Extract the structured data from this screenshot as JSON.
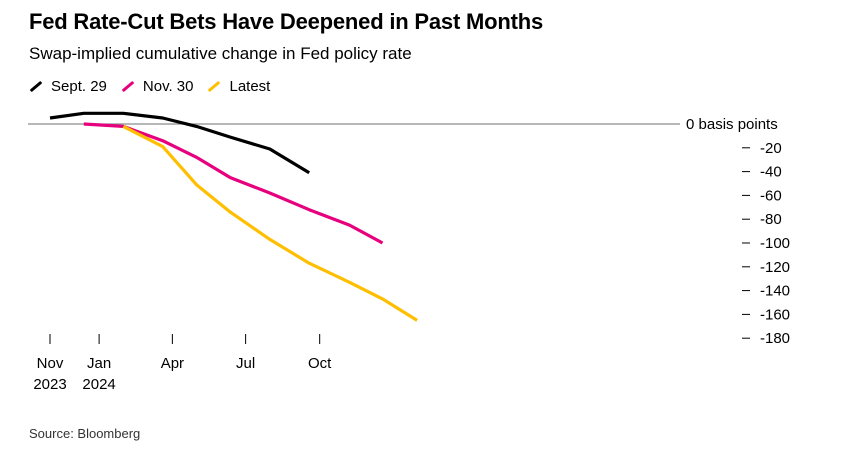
{
  "title": "Fed Rate-Cut Bets Have Deepened in Past Months",
  "subtitle": "Swap-implied cumulative change in Fed policy rate",
  "source": "Source: Bloomberg",
  "chart_data": {
    "type": "line",
    "title": "Fed Rate-Cut Bets Have Deepened in Past Months",
    "subtitle": "Swap-implied cumulative change in Fed policy rate",
    "y_unit_label": "basis points",
    "ylim": [
      -180,
      0
    ],
    "y_ticks": [
      0,
      -20,
      -40,
      -60,
      -80,
      -100,
      -120,
      -140,
      -160,
      -180
    ],
    "y_tick_labels": [
      "0 basis points",
      "-20",
      "-40",
      "-60",
      "-80",
      "-100",
      "-120",
      "-140",
      "-160",
      "-180"
    ],
    "x_ticks": [
      {
        "date": "2023-11-01",
        "label": "Nov",
        "sublabel": "2023"
      },
      {
        "date": "2024-01-01",
        "label": "Jan",
        "sublabel": "2024"
      },
      {
        "date": "2024-04-01",
        "label": "Apr",
        "sublabel": ""
      },
      {
        "date": "2024-07-01",
        "label": "Jul",
        "sublabel": ""
      },
      {
        "date": "2024-10-01",
        "label": "Oct",
        "sublabel": ""
      }
    ],
    "xlim": [
      "2023-11-01",
      "2025-01-10"
    ],
    "legend_position": "top-left",
    "grid": false,
    "series": [
      {
        "name": "Sept. 29",
        "color": "#000000",
        "x": [
          "2023-11-01",
          "2023-12-13",
          "2024-01-31",
          "2024-03-20",
          "2024-05-01",
          "2024-06-12",
          "2024-07-31",
          "2024-09-18"
        ],
        "y": [
          5,
          9,
          9,
          5,
          -2,
          -11,
          -21,
          -41
        ]
      },
      {
        "name": "Nov. 30",
        "color": "#e6007e",
        "x": [
          "2023-12-13",
          "2024-01-31",
          "2024-03-20",
          "2024-05-01",
          "2024-06-12",
          "2024-07-31",
          "2024-09-18",
          "2024-11-07",
          "2024-12-18"
        ],
        "y": [
          0,
          -2,
          -14,
          -28,
          -45,
          -58,
          -72,
          -85,
          -100
        ]
      },
      {
        "name": "Latest",
        "color": "#ffbf00",
        "x": [
          "2024-01-31",
          "2024-03-20",
          "2024-05-01",
          "2024-06-12",
          "2024-07-31",
          "2024-09-18",
          "2024-11-07",
          "2024-12-18",
          "2025-01-30"
        ],
        "y": [
          -2,
          -19,
          -51,
          -74,
          -97,
          -117,
          -133,
          -147,
          -165
        ]
      }
    ]
  }
}
